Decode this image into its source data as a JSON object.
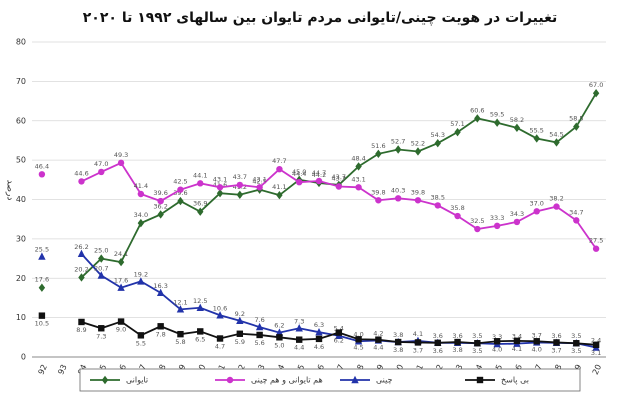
{
  "chart_data": {
    "type": "line",
    "title": "تغییرات در هویت چینی/تایوانی مردم تایوان بین سالهای ۱۹۹۲ تا ۲۰۲۰",
    "y_label": "درصد",
    "categories": [
      "92",
      "93",
      "94",
      "95",
      "96",
      "97",
      "98",
      "99",
      "00",
      "01",
      "02",
      "03",
      "04",
      "05",
      "06",
      "07",
      "08",
      "09",
      "10",
      "11",
      "12",
      "13",
      "14",
      "15",
      "16",
      "17",
      "18",
      "19",
      "20"
    ],
    "ylim": [
      0,
      80
    ],
    "yticks": [
      0,
      10,
      20,
      30,
      40,
      50,
      60,
      70,
      80
    ],
    "grid": true,
    "legend": "bottom",
    "series": [
      {
        "name": "تایوانی",
        "color": "#2e6b2e",
        "marker": "diamond",
        "values": [
          17.6,
          null,
          20.2,
          25.0,
          24.1,
          34.0,
          36.2,
          39.6,
          36.9,
          41.6,
          41.2,
          42.5,
          41.1,
          45.0,
          44.2,
          43.7,
          48.4,
          51.6,
          52.7,
          52.2,
          54.3,
          57.1,
          60.6,
          59.5,
          58.2,
          55.5,
          54.5,
          58.5,
          67.0
        ],
        "value_labels": [
          "17.6",
          null,
          "20.2",
          "25.0",
          "24.1",
          "34.0",
          "36.2",
          "39.6",
          "36.9",
          "41.6",
          "41.2",
          "42.5",
          "41.1",
          "45.0",
          "44.2",
          "43.7",
          "48.4",
          "51.6",
          "52.7",
          "52.2",
          "54.3",
          "57.1",
          "60.6",
          "59.5",
          "58.2",
          "55.5",
          "54.5",
          "58.5",
          "67.0"
        ]
      },
      {
        "name": "هم تایوانی و هم چینی",
        "color": "#cc33cc",
        "marker": "circle",
        "values": [
          46.4,
          null,
          44.6,
          47.0,
          49.3,
          41.4,
          39.6,
          42.5,
          44.1,
          43.1,
          43.7,
          43.1,
          47.7,
          44.4,
          44.7,
          43.3,
          43.1,
          39.8,
          40.3,
          39.8,
          38.5,
          35.8,
          32.5,
          33.3,
          34.3,
          37.0,
          38.2,
          34.7,
          27.5
        ],
        "value_labels": [
          "46.4",
          null,
          "44.6",
          "47.0",
          "49.3",
          "41.4",
          "39.6",
          "42.5",
          "44.1",
          "43.1",
          "43.7",
          "43.1",
          "47.7",
          "44.4",
          "44.7",
          "43.3",
          "43.1",
          "39.8",
          "40.3",
          "39.8",
          "38.5",
          "35.8",
          "32.5",
          "33.3",
          "34.3",
          "37.0",
          "38.2",
          "34.7",
          "27.5"
        ]
      },
      {
        "name": "چینی",
        "color": "#2233aa",
        "marker": "triangle",
        "values": [
          25.5,
          null,
          26.2,
          20.7,
          17.6,
          19.2,
          16.3,
          12.1,
          12.5,
          10.6,
          9.2,
          7.6,
          6.2,
          7.3,
          6.3,
          5.4,
          4.0,
          4.2,
          3.8,
          4.1,
          3.6,
          3.6,
          3.5,
          3.3,
          3.4,
          3.7,
          3.6,
          3.5,
          2.4
        ],
        "value_labels": [
          "25.5",
          null,
          "26.2",
          "20.7",
          "17.6",
          "19.2",
          "16.3",
          "12.1",
          "12.5",
          "10.6",
          "9.2",
          "7.6",
          "6.2",
          "7.3",
          "6.3",
          "5.4",
          "4.0",
          "4.2",
          "3.8",
          "4.1",
          "3.6",
          "3.6",
          "3.5",
          "3.3",
          "3.4",
          "3.7",
          "3.6",
          "3.5",
          "2.4"
        ]
      },
      {
        "name": "بی پاسخ",
        "color": "#111111",
        "marker": "square",
        "values": [
          10.5,
          null,
          8.9,
          7.3,
          9.0,
          5.5,
          7.8,
          5.8,
          6.5,
          4.7,
          5.9,
          5.6,
          5.0,
          4.4,
          4.6,
          6.2,
          4.5,
          4.4,
          3.8,
          3.7,
          3.6,
          3.8,
          3.5,
          4.0,
          4.1,
          4.0,
          3.7,
          3.5,
          3.1
        ],
        "value_labels": [
          "10.5",
          null,
          "8.9",
          "7.3",
          "9.0",
          "5.5",
          "7.8",
          "5.8",
          "6.5",
          "4.7",
          "5.9",
          "5.6",
          "5.0",
          "4.4",
          "4.6",
          "6.2",
          "4.5",
          "4.4",
          "3.8",
          "3.7",
          "3.6",
          "3.8",
          "3.5",
          "4.0",
          "4.1",
          "4.0",
          "3.7",
          "3.5",
          "3.1"
        ]
      }
    ]
  }
}
